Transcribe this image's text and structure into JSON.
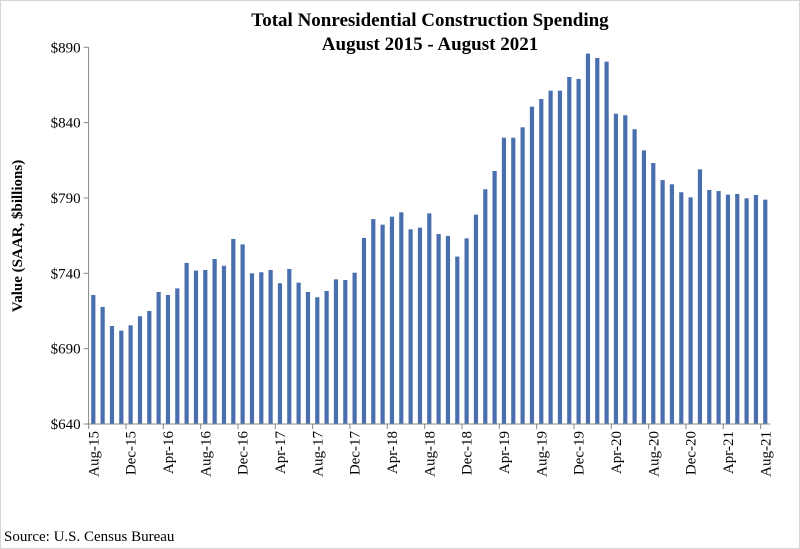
{
  "chart_data": {
    "type": "bar",
    "title": "Total Nonresidential Construction Spending",
    "subtitle": "August 2015 - August 2021",
    "xlabel": "",
    "ylabel": "Value (SAAR, $billions)",
    "ylim": [
      640,
      890
    ],
    "yticks": [
      "$640",
      "$690",
      "$740",
      "$790",
      "$840",
      "$890"
    ],
    "ytick_values": [
      640,
      690,
      740,
      790,
      840,
      890
    ],
    "grid": false,
    "legend": "none",
    "bar_color": "#4a6fae",
    "x_tick_labels": [
      "Aug-15",
      "Dec-15",
      "Apr-16",
      "Aug-16",
      "Dec-16",
      "Apr-17",
      "Aug-17",
      "Dec-17",
      "Apr-18",
      "Aug-18",
      "Dec-18",
      "Apr-19",
      "Aug-19",
      "Dec-19",
      "Apr-20",
      "Aug-20",
      "Dec-20",
      "Apr-21",
      "Aug-21"
    ],
    "x_label_every": 4,
    "values": [
      725.6,
      717.7,
      705.0,
      702.0,
      705.5,
      711.5,
      715.0,
      727.6,
      725.6,
      730.0,
      746.9,
      741.8,
      742.2,
      749.5,
      745.0,
      762.8,
      759.2,
      740.0,
      740.7,
      742.2,
      733.4,
      742.9,
      733.8,
      727.6,
      724.1,
      728.3,
      736.0,
      735.6,
      740.4,
      763.5,
      776.0,
      772.3,
      777.6,
      780.5,
      769.2,
      770.3,
      779.8,
      766.1,
      764.8,
      751.1,
      763.2,
      778.9,
      795.8,
      807.9,
      830.0,
      830.0,
      836.9,
      850.6,
      855.7,
      861.2,
      861.2,
      870.3,
      869.0,
      885.8,
      882.9,
      880.5,
      845.9,
      844.9,
      835.6,
      821.6,
      813.2,
      801.9,
      799.1,
      793.8,
      790.4,
      809.0,
      795.3,
      794.6,
      792.2,
      792.7,
      789.8,
      792.0,
      788.9
    ]
  },
  "source": "Source:  U.S. Census Bureau"
}
